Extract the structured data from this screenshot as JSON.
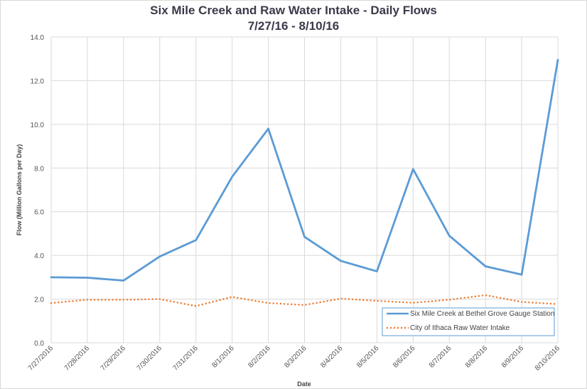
{
  "chart_data": {
    "type": "line",
    "title": "Six Mile Creek and Raw Water Intake - Daily Flows",
    "subtitle": "7/27/16 - 8/10/16",
    "xlabel": "Date",
    "ylabel": "Flow (Million Gallons per Day)",
    "ylim": [
      0,
      14
    ],
    "yticks": [
      "0.0",
      "2.0",
      "4.0",
      "6.0",
      "8.0",
      "10.0",
      "12.0",
      "14.0"
    ],
    "grid": true,
    "legend_position": "bottom-right",
    "categories": [
      "7/27/2016",
      "7/28/2016",
      "7/29/2016",
      "7/30/2016",
      "7/31/2016",
      "8/1/2016",
      "8/2/2016",
      "8/3/2016",
      "8/4/2016",
      "8/5/2016",
      "8/6/2016",
      "8/7/2016",
      "8/8/2016",
      "8/9/2016",
      "8/10/2016"
    ],
    "series": [
      {
        "name": "Six Mile Creek at Bethel Grove Gauge Station",
        "color": "#5b9bd5",
        "style": "solid",
        "values": [
          3.0,
          2.98,
          2.85,
          3.95,
          4.7,
          7.6,
          9.8,
          4.85,
          3.75,
          3.27,
          7.95,
          4.9,
          3.5,
          3.12,
          12.95
        ]
      },
      {
        "name": "City of Ithaca Raw Water Intake",
        "color": "#ed7d31",
        "style": "dotted",
        "values": [
          1.82,
          1.97,
          1.97,
          2.0,
          1.68,
          2.1,
          1.82,
          1.73,
          2.02,
          1.92,
          1.83,
          1.97,
          2.18,
          1.87,
          1.77
        ]
      }
    ]
  }
}
